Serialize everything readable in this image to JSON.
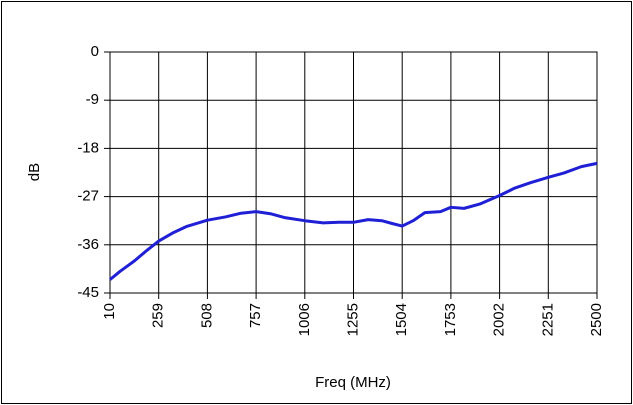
{
  "chart_data": {
    "type": "line",
    "xlabel": "Freq (MHz)",
    "ylabel": "dB",
    "x": [
      10,
      60,
      135,
      200,
      259,
      330,
      400,
      508,
      600,
      680,
      757,
      830,
      900,
      1006,
      1100,
      1180,
      1255,
      1330,
      1400,
      1450,
      1504,
      1560,
      1620,
      1700,
      1753,
      1820,
      1900,
      2002,
      2080,
      2160,
      2251,
      2330,
      2420,
      2500
    ],
    "series": [
      {
        "name": "dB",
        "color": "#1f1fd6",
        "values": [
          -42.5,
          -41.0,
          -39.0,
          -37.0,
          -35.3,
          -33.8,
          -32.6,
          -31.4,
          -30.8,
          -30.1,
          -29.8,
          -30.2,
          -30.9,
          -31.5,
          -31.9,
          -31.8,
          -31.8,
          -31.3,
          -31.5,
          -32.0,
          -32.5,
          -31.5,
          -30.0,
          -29.8,
          -29.0,
          -29.2,
          -28.4,
          -26.8,
          -25.4,
          -24.4,
          -23.4,
          -22.6,
          -21.4,
          -20.8
        ]
      }
    ],
    "xlim": [
      10,
      2500
    ],
    "xticks": [
      10,
      259,
      508,
      757,
      1006,
      1255,
      1504,
      1753,
      2002,
      2251,
      2500
    ],
    "ylim": [
      -45,
      0
    ],
    "yticks": [
      0,
      -9,
      -18,
      -27,
      -36,
      -45
    ],
    "grid": true
  }
}
